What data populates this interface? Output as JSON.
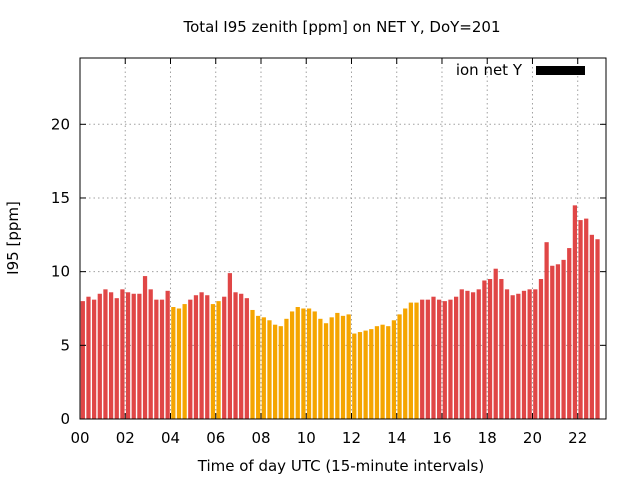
{
  "chart_data": {
    "type": "bar",
    "title": "Total I95 zenith [ppm] on NET Y, DoY=201",
    "xlabel": "Time of day UTC (15-minute intervals)",
    "ylabel": "I95 [ppm]",
    "ylim": [
      0,
      24.5
    ],
    "xlim": [
      0,
      23.25
    ],
    "bar_interval_hours": 0.25,
    "yticks": [
      0,
      5,
      10,
      15,
      20
    ],
    "xticks": [
      {
        "v": 0,
        "label": "00"
      },
      {
        "v": 2,
        "label": "02"
      },
      {
        "v": 4,
        "label": "04"
      },
      {
        "v": 6,
        "label": "06"
      },
      {
        "v": 8,
        "label": "08"
      },
      {
        "v": 10,
        "label": "10"
      },
      {
        "v": 12,
        "label": "12"
      },
      {
        "v": 14,
        "label": "14"
      },
      {
        "v": 16,
        "label": "16"
      },
      {
        "v": 18,
        "label": "18"
      },
      {
        "v": 20,
        "label": "20"
      },
      {
        "v": 22,
        "label": "22"
      }
    ],
    "grid": true,
    "legend": {
      "position": "top-right",
      "label": "ion net Y",
      "color": "#000000"
    },
    "colors": {
      "red": "#e04646",
      "orange": "#f5a500"
    },
    "values": [
      8.0,
      8.3,
      8.1,
      8.5,
      8.8,
      8.6,
      8.2,
      8.8,
      8.6,
      8.5,
      8.5,
      9.7,
      8.8,
      8.1,
      8.1,
      8.7,
      7.6,
      7.5,
      7.8,
      8.1,
      8.4,
      8.6,
      8.4,
      7.8,
      8.0,
      8.3,
      9.9,
      8.6,
      8.5,
      8.2,
      7.4,
      7.0,
      6.9,
      6.7,
      6.4,
      6.3,
      6.8,
      7.3,
      7.6,
      7.5,
      7.5,
      7.3,
      6.8,
      6.5,
      6.9,
      7.2,
      7.0,
      7.1,
      5.8,
      5.9,
      6.0,
      6.1,
      6.3,
      6.4,
      6.3,
      6.7,
      7.1,
      7.5,
      7.9,
      7.9,
      8.1,
      8.1,
      8.3,
      8.1,
      8.0,
      8.1,
      8.3,
      8.8,
      8.7,
      8.6,
      8.8,
      9.4,
      9.5,
      10.2,
      9.5,
      8.8,
      8.4,
      8.5,
      8.7,
      8.8,
      8.8,
      9.5,
      12.0,
      10.4,
      10.5,
      10.8,
      11.6,
      14.5,
      13.5,
      13.6,
      12.5,
      12.2
    ],
    "bar_colors": [
      "red",
      "red",
      "red",
      "red",
      "red",
      "red",
      "red",
      "red",
      "red",
      "red",
      "red",
      "red",
      "red",
      "red",
      "red",
      "red",
      "orange",
      "orange",
      "orange",
      "red",
      "red",
      "red",
      "red",
      "orange",
      "orange",
      "red",
      "red",
      "red",
      "red",
      "red",
      "orange",
      "orange",
      "orange",
      "orange",
      "orange",
      "orange",
      "orange",
      "orange",
      "orange",
      "orange",
      "orange",
      "orange",
      "orange",
      "orange",
      "orange",
      "orange",
      "orange",
      "orange",
      "orange",
      "orange",
      "orange",
      "orange",
      "orange",
      "orange",
      "orange",
      "orange",
      "orange",
      "orange",
      "orange",
      "orange",
      "red",
      "red",
      "red",
      "red",
      "red",
      "red",
      "red",
      "red",
      "red",
      "red",
      "red",
      "red",
      "red",
      "red",
      "red",
      "red",
      "red",
      "red",
      "red",
      "red",
      "red",
      "red",
      "red",
      "red",
      "red",
      "red",
      "red",
      "red",
      "red",
      "red",
      "red",
      "red"
    ]
  }
}
